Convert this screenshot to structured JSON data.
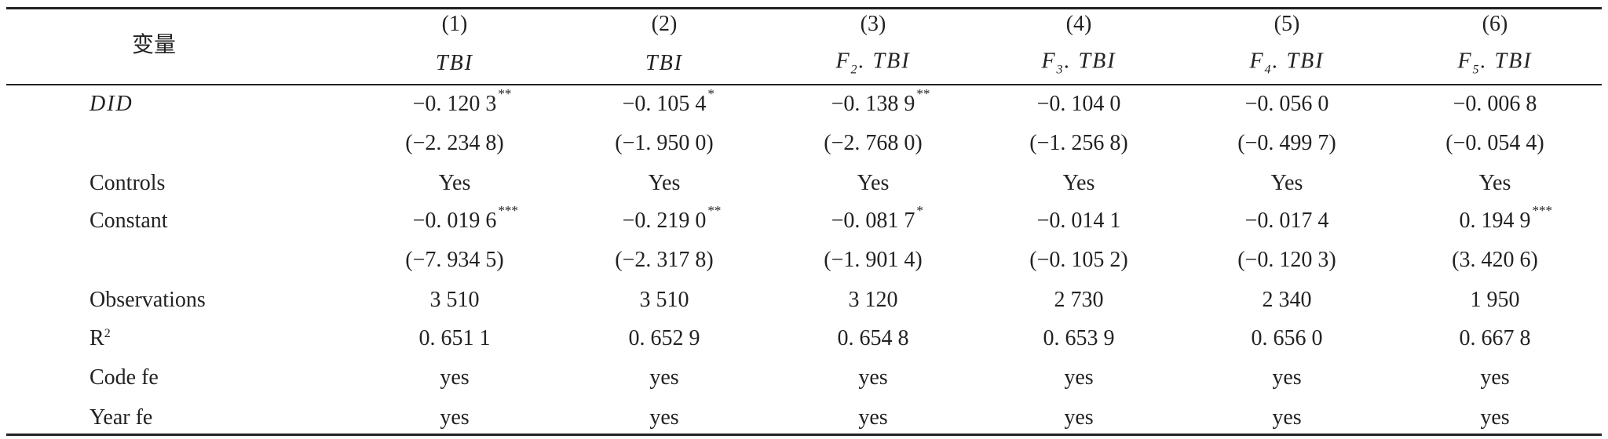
{
  "table": {
    "corner": "变量",
    "columns": [
      {
        "number": "(1)",
        "dep": {
          "name": "TBI"
        }
      },
      {
        "number": "(2)",
        "dep": {
          "name": "TBI"
        }
      },
      {
        "number": "(3)",
        "dep": {
          "lead": "F",
          "sub": "2",
          "name": ". TBI"
        }
      },
      {
        "number": "(4)",
        "dep": {
          "lead": "F",
          "sub": "3",
          "name": ". TBI"
        }
      },
      {
        "number": "(5)",
        "dep": {
          "lead": "F",
          "sub": "4",
          "name": ". TBI"
        }
      },
      {
        "number": "(6)",
        "dep": {
          "lead": "F",
          "sub": "5",
          "name": ". TBI"
        }
      }
    ],
    "rows": [
      {
        "label": {
          "text": "DID"
        },
        "cells": [
          {
            "text": "−0. 120 3",
            "stars": "**"
          },
          {
            "text": "−0. 105 4",
            "stars": "*"
          },
          {
            "text": "−0. 138 9",
            "stars": "**"
          },
          {
            "text": "−0. 104 0"
          },
          {
            "text": "−0. 056 0"
          },
          {
            "text": "−0. 006 8"
          }
        ]
      },
      {
        "cells": [
          {
            "text": "(−2. 234 8)"
          },
          {
            "text": "(−1. 950 0)"
          },
          {
            "text": "(−2. 768 0)"
          },
          {
            "text": "(−1. 256 8)"
          },
          {
            "text": "(−0. 499 7)"
          },
          {
            "text": "(−0. 054 4)"
          }
        ]
      },
      {
        "label": {
          "text": "Controls"
        },
        "cells": [
          {
            "text": "Yes"
          },
          {
            "text": "Yes"
          },
          {
            "text": "Yes"
          },
          {
            "text": "Yes"
          },
          {
            "text": "Yes"
          },
          {
            "text": "Yes"
          }
        ]
      },
      {
        "label": {
          "text": "Constant"
        },
        "cells": [
          {
            "text": "−0. 019 6",
            "stars": "***"
          },
          {
            "text": "−0. 219 0",
            "stars": "**"
          },
          {
            "text": "−0. 081 7",
            "stars": "*"
          },
          {
            "text": "−0. 014 1"
          },
          {
            "text": "−0. 017 4"
          },
          {
            "text": "0. 194 9",
            "stars": "***"
          }
        ]
      },
      {
        "cells": [
          {
            "text": "(−7. 934 5)"
          },
          {
            "text": "(−2. 317 8)"
          },
          {
            "text": "(−1. 901 4)"
          },
          {
            "text": "(−0. 105 2)"
          },
          {
            "text": "(−0. 120 3)"
          },
          {
            "text": "(3. 420 6)"
          }
        ]
      },
      {
        "label": {
          "text": "Observations"
        },
        "cells": [
          {
            "text": "3 510"
          },
          {
            "text": "3 510"
          },
          {
            "text": "3 120"
          },
          {
            "text": "2 730"
          },
          {
            "text": "2 340"
          },
          {
            "text": "1 950"
          }
        ]
      },
      {
        "label": {
          "text": "R",
          "sup": "2"
        },
        "cells": [
          {
            "text": "0. 651 1"
          },
          {
            "text": "0. 652 9"
          },
          {
            "text": "0. 654 8"
          },
          {
            "text": "0. 653 9"
          },
          {
            "text": "0. 656 0"
          },
          {
            "text": "0. 667 8"
          }
        ]
      },
      {
        "label": {
          "text": "Code fe"
        },
        "cells": [
          {
            "text": "yes"
          },
          {
            "text": "yes"
          },
          {
            "text": "yes"
          },
          {
            "text": "yes"
          },
          {
            "text": "yes"
          },
          {
            "text": "yes"
          }
        ]
      },
      {
        "label": {
          "text": "Year fe"
        },
        "cells": [
          {
            "text": "yes"
          },
          {
            "text": "yes"
          },
          {
            "text": "yes"
          },
          {
            "text": "yes"
          },
          {
            "text": "yes"
          },
          {
            "text": "yes"
          }
        ]
      }
    ]
  }
}
